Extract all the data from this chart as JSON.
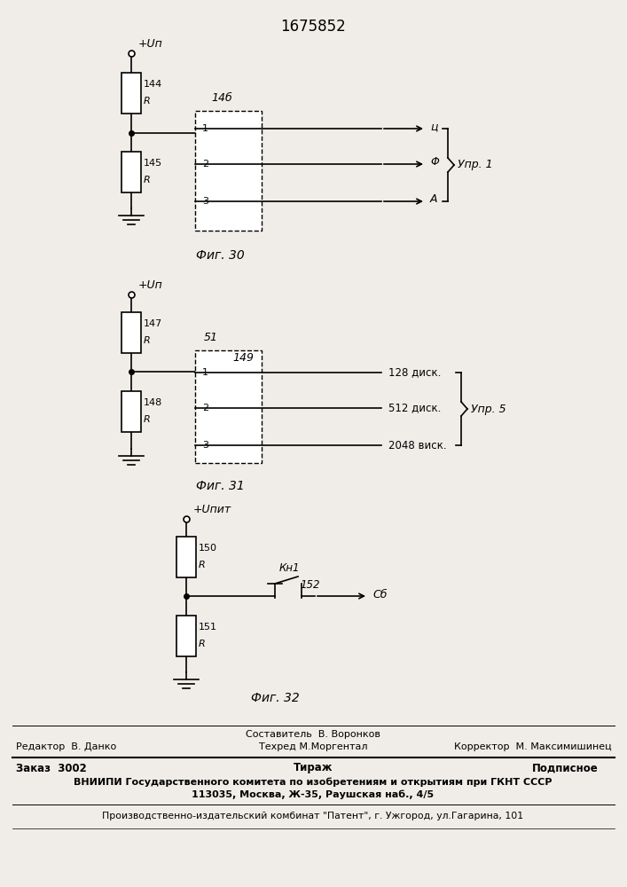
{
  "title": "1675852",
  "bg_color": "#f0ede8",
  "fig30": {
    "label": "Фиг. 30",
    "vdd_label": "+Uп",
    "r1_num": "144",
    "r2_num": "145",
    "block_label": "14б",
    "outputs": [
      "ц",
      "Φ",
      "A"
    ],
    "output_nums": [
      "1",
      "2",
      "3"
    ],
    "group_label": "Упр. 1"
  },
  "fig31": {
    "label": "Фиг. 31",
    "vdd_label": "+Uп",
    "r1_num": "147",
    "r2_num": "148",
    "block_label1": "51",
    "block_label2": "149",
    "outputs": [
      "128 диск.",
      "512 диск.",
      "2048 виск."
    ],
    "output_nums": [
      "1",
      "2",
      "3"
    ],
    "group_label": "Упр. 5"
  },
  "fig32": {
    "label": "Фиг. 32",
    "vdd_label": "+Uпит",
    "r1_num": "150",
    "r2_num": "151",
    "kn_label": "Кн1",
    "sw_num": "152",
    "out_label": "Сб"
  },
  "footer": {
    "line1_center": "Составитель  В. Воронков",
    "line2_left": "Редактор  В. Данко",
    "line2_center": "Техред М.Моргентал",
    "line2_right": "Корректор  М. Максимишинец",
    "line3_col1": "Заказ  3002",
    "line3_col2": "Тираж",
    "line3_col3": "Подписное",
    "line4": "ВНИИПИ Государственного комитета по изобретениям и открытиям при ГКНТ СССР",
    "line5": "113035, Москва, Ж-35, Раушская наб., 4/5",
    "line6": "Производственно-издательский комбинат \"Патент\", г. Ужгород, ул.Гагарина, 101"
  }
}
